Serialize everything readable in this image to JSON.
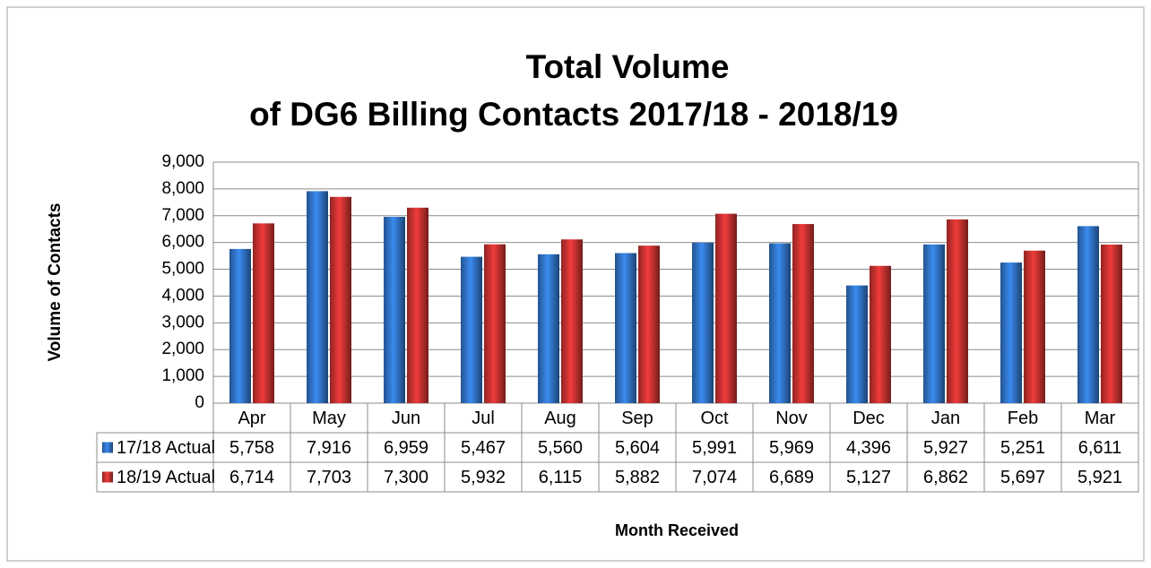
{
  "chart_data": {
    "type": "bar",
    "title": [
      "Total Volume",
      "of DG6 Billing Contacts 2017/18 - 2018/19"
    ],
    "y_label": "Volume of Contacts",
    "x_label": "Month Received",
    "categories": [
      "Apr",
      "May",
      "Jun",
      "Jul",
      "Aug",
      "Sep",
      "Oct",
      "Nov",
      "Dec",
      "Jan",
      "Feb",
      "Mar"
    ],
    "series": [
      {
        "name": "17/18 Actual",
        "color": "#2f6fc0",
        "values": [
          5758,
          7916,
          6959,
          5467,
          5560,
          5604,
          5991,
          5969,
          4396,
          5927,
          5251,
          6611
        ],
        "value_labels": [
          "5,758",
          "7,916",
          "6,959",
          "5,467",
          "5,560",
          "5,604",
          "5,991",
          "5,969",
          "4,396",
          "5,927",
          "5,251",
          "6,611"
        ]
      },
      {
        "name": "18/19 Actual",
        "color": "#c0302e",
        "values": [
          6714,
          7703,
          7300,
          5932,
          6115,
          5882,
          7074,
          6689,
          5127,
          6862,
          5697,
          5921
        ],
        "value_labels": [
          "6,714",
          "7,703",
          "7,300",
          "5,932",
          "6,115",
          "5,882",
          "7,074",
          "6,689",
          "5,127",
          "6,862",
          "5,697",
          "5,921"
        ]
      }
    ],
    "ylim": [
      0,
      9000
    ],
    "yticks": [
      0,
      {
        "value": 1000,
        "label": "1,000"
      },
      {
        "value": 2000,
        "label": "2,000"
      },
      {
        "value": 3000,
        "label": "3,000"
      },
      {
        "value": 4000,
        "label": "4,000"
      },
      {
        "value": 5000,
        "label": "5,000"
      },
      {
        "value": 6000,
        "label": "6,000"
      },
      {
        "value": 7000,
        "label": "7,000"
      },
      {
        "value": 8000,
        "label": "8,000"
      },
      {
        "value": 9000,
        "label": "9,000"
      }
    ],
    "grid": true
  }
}
